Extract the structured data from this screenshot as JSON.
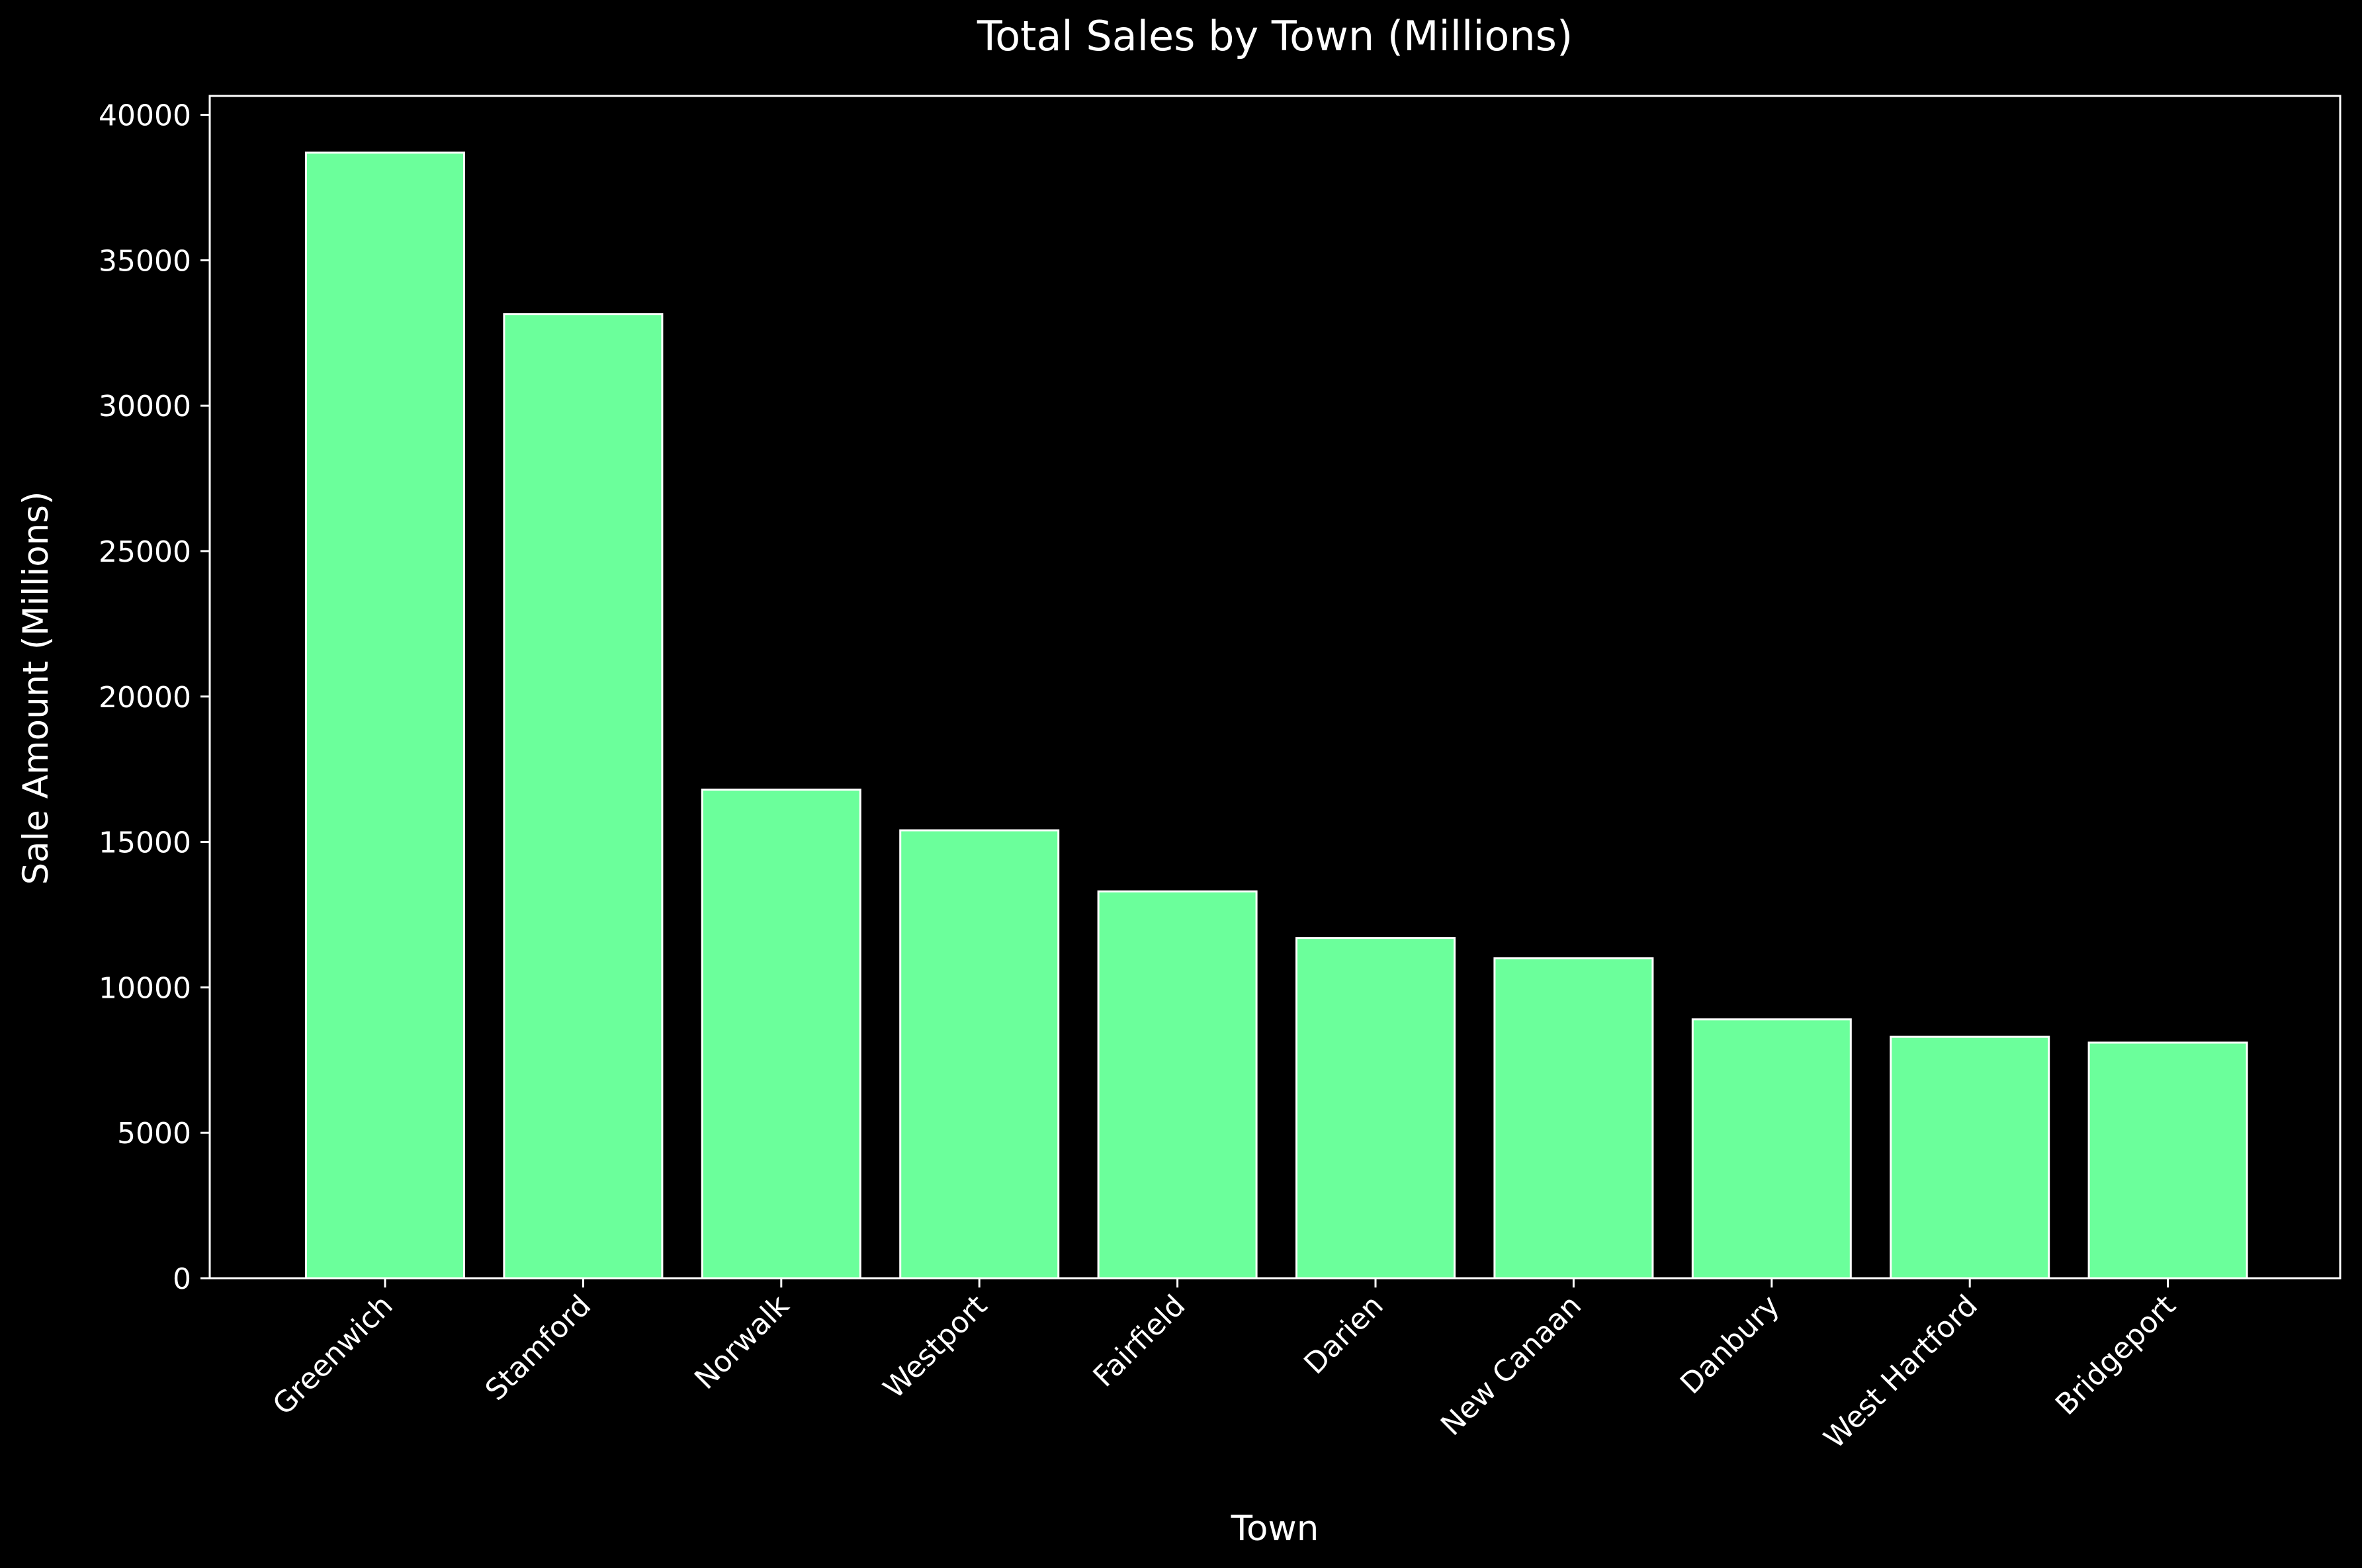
{
  "chart_data": {
    "type": "bar",
    "title": "Total Sales by Town (Millions)",
    "xlabel": "Town",
    "ylabel": "Sale Amount (Millions)",
    "categories": [
      "Greenwich",
      "Stamford",
      "Norwalk",
      "Westport",
      "Fairfield",
      "Darien",
      "New Canaan",
      "Danbury",
      "West Hartford",
      "Bridgeport"
    ],
    "values": [
      38700,
      33150,
      16800,
      15400,
      13300,
      11700,
      11000,
      8900,
      8300,
      8100
    ],
    "yticks": [
      "0",
      "5000",
      "10000",
      "15000",
      "20000",
      "25000",
      "30000",
      "35000",
      "40000"
    ],
    "ylim": [
      0,
      40650
    ],
    "grid": false,
    "colors": {
      "background": "#000000",
      "bar_fill": "#6bff9b",
      "bar_edge": "#ffffff",
      "axis": "#ffffff",
      "text": "#ffffff"
    }
  }
}
